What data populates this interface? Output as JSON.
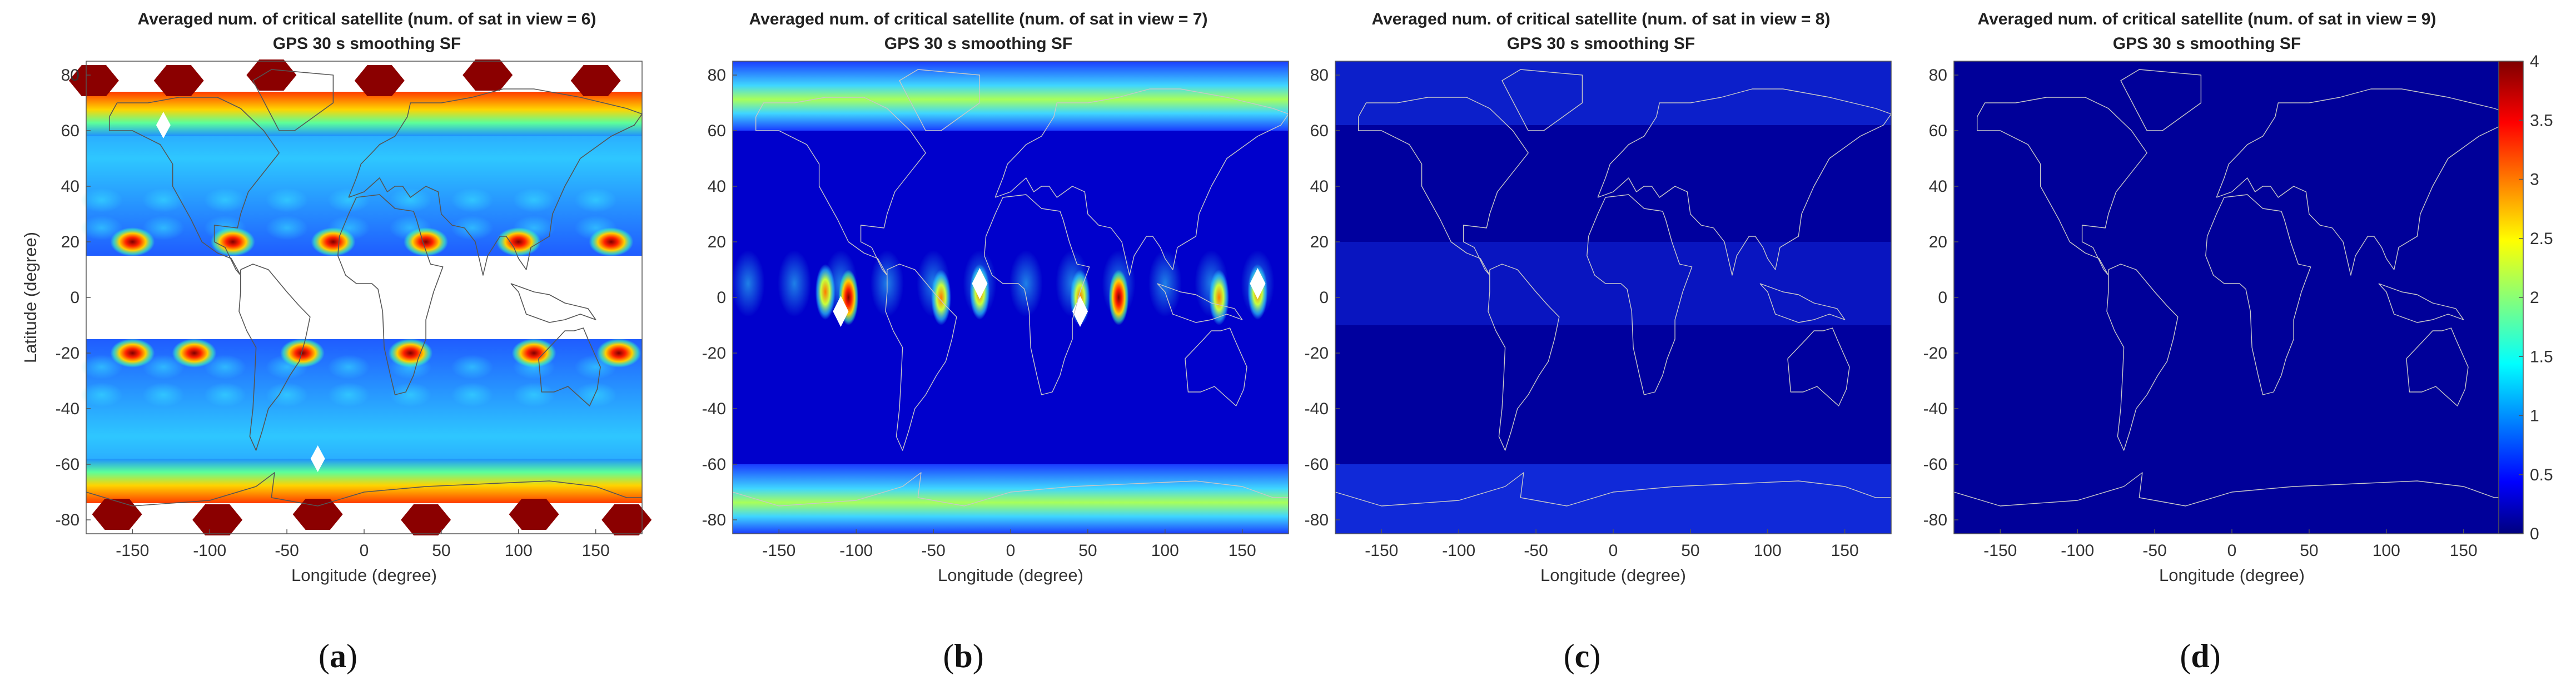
{
  "chart_data": [
    {
      "type": "heatmap",
      "panel": "a",
      "title": "Averaged num. of critical satellite (num. of sat in view = 6)",
      "subtitle": "GPS 30 s smoothing SF",
      "xlabel": "Longitude (degree)",
      "ylabel": "Latitude (degree)",
      "xlim": [
        -180,
        180
      ],
      "ylim": [
        -85,
        85
      ],
      "xticks": [
        "-150",
        "-100",
        "-50",
        "0",
        "50",
        "100",
        "150"
      ],
      "yticks": [
        "80",
        "60",
        "40",
        "20",
        "0",
        "-20",
        "-40",
        "-60",
        "-80"
      ],
      "caption": "(a)",
      "bands": [
        {
          "lat": [
            62,
            72
          ],
          "value": 2.8
        },
        {
          "lat": [
            42,
            62
          ],
          "value": 1.1
        },
        {
          "lat": [
            15,
            42
          ],
          "value": 1.3
        },
        {
          "lat": [
            -15,
            15
          ],
          "value": null
        },
        {
          "lat": [
            -42,
            -15
          ],
          "value": 1.3
        },
        {
          "lat": [
            -62,
            -42
          ],
          "value": 1.1
        },
        {
          "lat": [
            -72,
            -62
          ],
          "value": 2.8
        }
      ],
      "hotspots": [
        {
          "lon": -150,
          "lat": 20,
          "value": 4
        },
        {
          "lon": -85,
          "lat": 20,
          "value": 4
        },
        {
          "lon": -20,
          "lat": 20,
          "value": 4
        },
        {
          "lon": 40,
          "lat": 20,
          "value": 4
        },
        {
          "lon": 100,
          "lat": 20,
          "value": 4
        },
        {
          "lon": 160,
          "lat": 20,
          "value": 4
        },
        {
          "lon": -150,
          "lat": -20,
          "value": 4
        },
        {
          "lon": -110,
          "lat": -20,
          "value": 4
        },
        {
          "lon": -40,
          "lat": -20,
          "value": 4
        },
        {
          "lon": 30,
          "lat": -20,
          "value": 4
        },
        {
          "lon": 110,
          "lat": -20,
          "value": 4
        },
        {
          "lon": 165,
          "lat": -20,
          "value": 4
        }
      ],
      "no_data_regions": [
        {
          "lon": -175,
          "lat": 78
        },
        {
          "lon": -120,
          "lat": 78
        },
        {
          "lon": -60,
          "lat": 80
        },
        {
          "lon": 10,
          "lat": 78
        },
        {
          "lon": 80,
          "lat": 80
        },
        {
          "lon": 150,
          "lat": 78
        },
        {
          "lon": -160,
          "lat": -78
        },
        {
          "lon": -95,
          "lat": -80
        },
        {
          "lon": -30,
          "lat": -78
        },
        {
          "lon": 40,
          "lat": -80
        },
        {
          "lon": 110,
          "lat": -78
        },
        {
          "lon": 170,
          "lat": -80
        }
      ]
    },
    {
      "type": "heatmap",
      "panel": "b",
      "title": "Averaged num. of critical satellite (num. of sat in view = 7)",
      "subtitle": "GPS 30 s smoothing SF",
      "xlabel": "Longitude (degree)",
      "ylabel": "",
      "xlim": [
        -180,
        180
      ],
      "ylim": [
        -85,
        85
      ],
      "xticks": [
        "-150",
        "-100",
        "-50",
        "0",
        "50",
        "100",
        "150"
      ],
      "yticks": [
        "80",
        "60",
        "40",
        "20",
        "0",
        "-20",
        "-40",
        "-60",
        "-80"
      ],
      "caption": "(b)",
      "bands": [
        {
          "lat": [
            60,
            85
          ],
          "value": 1.5
        },
        {
          "lat": [
            -85,
            -60
          ],
          "value": 1.4
        }
      ],
      "background_value": 0.3,
      "hotspots": [
        {
          "lon": -120,
          "lat": 2,
          "value": 2.2
        },
        {
          "lon": -105,
          "lat": 0,
          "value": 3.5
        },
        {
          "lon": -45,
          "lat": 0,
          "value": 2.0
        },
        {
          "lon": -20,
          "lat": 2,
          "value": 2.5
        },
        {
          "lon": 45,
          "lat": 0,
          "value": 2.5
        },
        {
          "lon": 70,
          "lat": 0,
          "value": 4
        },
        {
          "lon": 135,
          "lat": 0,
          "value": 2.0
        },
        {
          "lon": 160,
          "lat": 2,
          "value": 2.2
        }
      ]
    },
    {
      "type": "heatmap",
      "panel": "c",
      "title": "Averaged num. of critical satellite (num. of sat in view = 8)",
      "subtitle": "GPS 30 s smoothing SF",
      "xlabel": "Longitude (degree)",
      "ylabel": "",
      "xlim": [
        -180,
        180
      ],
      "ylim": [
        -85,
        85
      ],
      "xticks": [
        "-150",
        "-100",
        "-50",
        "0",
        "50",
        "100",
        "150"
      ],
      "yticks": [
        "80",
        "60",
        "40",
        "20",
        "0",
        "-20",
        "-40",
        "-60",
        "-80"
      ],
      "caption": "(c)",
      "background_value": 0.12,
      "bands": [
        {
          "lat": [
            60,
            85
          ],
          "value": 0.3
        },
        {
          "lat": [
            -85,
            -60
          ],
          "value": 0.35
        }
      ]
    },
    {
      "type": "heatmap",
      "panel": "d",
      "title": "Averaged num. of critical satellite (num. of sat in view = 9)",
      "subtitle": "GPS 30 s smoothing SF",
      "xlabel": "Longitude (degree)",
      "ylabel": "",
      "xlim": [
        -180,
        180
      ],
      "ylim": [
        -85,
        85
      ],
      "xticks": [
        "-150",
        "-100",
        "-50",
        "0",
        "50",
        "100",
        "150"
      ],
      "yticks": [
        "80",
        "60",
        "40",
        "20",
        "0",
        "-20",
        "-40",
        "-60",
        "-80"
      ],
      "caption": "(d)",
      "background_value": 0.1,
      "bands": [],
      "colorbar": {
        "range": [
          0,
          4
        ],
        "ticks": [
          "4",
          "3.5",
          "3",
          "2.5",
          "2",
          "1.5",
          "1",
          "0.5",
          "0"
        ],
        "colormap": "jet"
      }
    }
  ]
}
